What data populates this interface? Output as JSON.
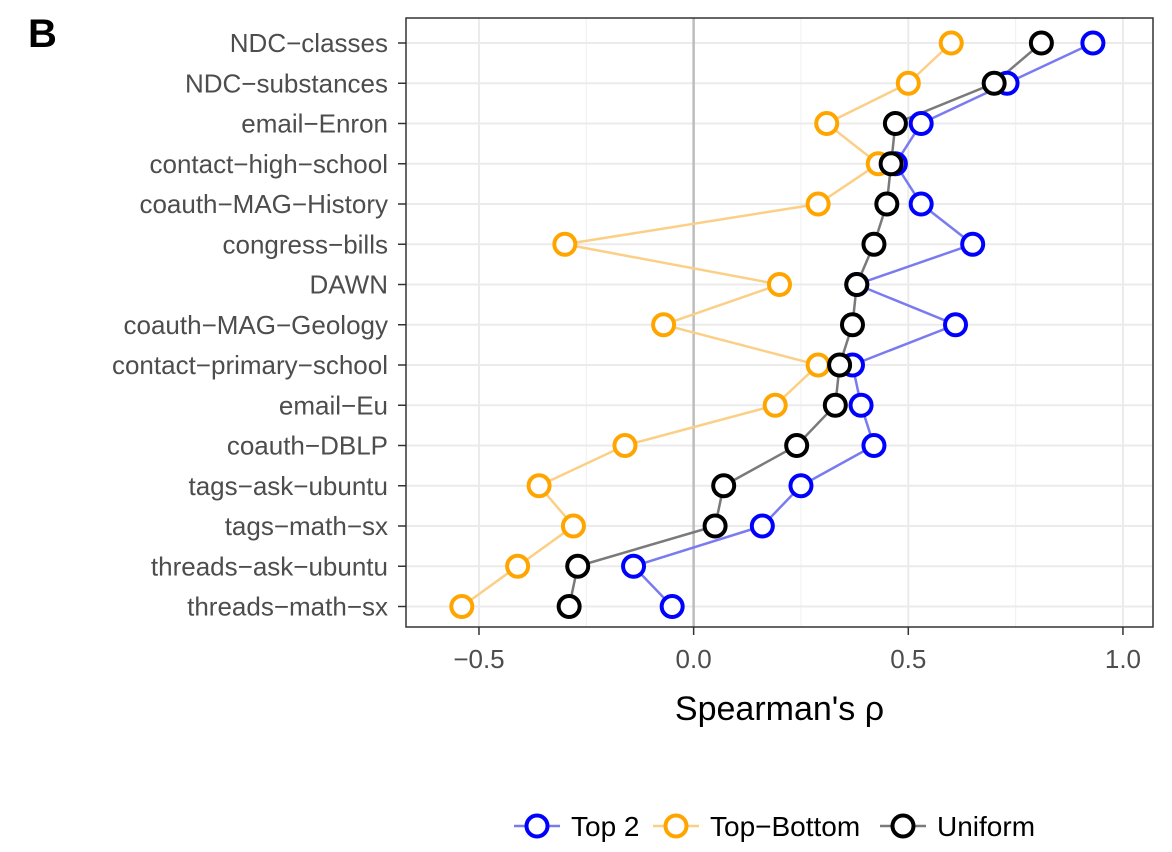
{
  "panel_label": "B",
  "chart_data": {
    "type": "line",
    "orientation": "horizontal",
    "categories": [
      "NDC−classes",
      "NDC−substances",
      "email−Enron",
      "contact−high−school",
      "coauth−MAG−History",
      "congress−bills",
      "DAWN",
      "coauth−MAG−Geology",
      "contact−primary−school",
      "email−Eu",
      "coauth−DBLP",
      "tags−ask−ubuntu",
      "tags−math−sx",
      "threads−ask−ubuntu",
      "threads−math−sx"
    ],
    "series": [
      {
        "name": "Top 2",
        "color": "#0000ff",
        "values": [
          0.93,
          0.73,
          0.53,
          0.47,
          0.53,
          0.65,
          0.38,
          0.61,
          0.37,
          0.39,
          0.42,
          0.25,
          0.16,
          -0.14,
          -0.05
        ]
      },
      {
        "name": "Top−Bottom",
        "color": "#ffa500",
        "values": [
          0.6,
          0.5,
          0.31,
          0.43,
          0.29,
          -0.3,
          0.2,
          -0.07,
          0.29,
          0.19,
          -0.16,
          -0.36,
          -0.28,
          -0.41,
          -0.54
        ]
      },
      {
        "name": "Uniform",
        "color": "#000000",
        "values": [
          0.81,
          0.7,
          0.47,
          0.46,
          0.45,
          0.42,
          0.38,
          0.37,
          0.34,
          0.33,
          0.24,
          0.07,
          0.05,
          -0.27,
          -0.29
        ]
      }
    ],
    "xlabel": "Spearman's ρ",
    "xlim": [
      -0.67,
      1.07
    ],
    "xticks": [
      -0.5,
      0.0,
      0.5,
      1.0
    ],
    "xtick_labels": [
      "−0.5",
      "0.0",
      "0.5",
      "1.0"
    ],
    "reference_line": 0,
    "grid": true,
    "legend_position": "bottom"
  }
}
